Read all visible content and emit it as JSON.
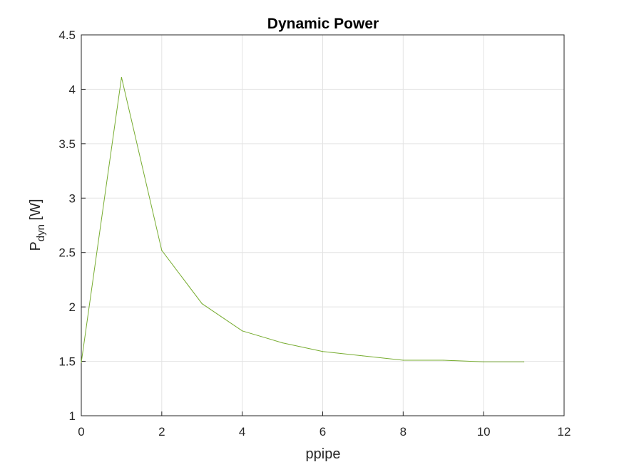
{
  "chart_data": {
    "type": "line",
    "title": "Dynamic Power",
    "xlabel": "ppipe",
    "ylabel_main": "P",
    "ylabel_sub": "dyn",
    "ylabel_unit": " [W]",
    "xlim": [
      0,
      12
    ],
    "ylim": [
      1,
      4.5
    ],
    "xticks": [
      0,
      2,
      4,
      6,
      8,
      10,
      12
    ],
    "yticks": [
      1,
      1.5,
      2,
      2.5,
      3,
      3.5,
      4,
      4.5
    ],
    "ytick_labels": [
      "1",
      "1.5",
      "2",
      "2.5",
      "3",
      "3.5",
      "4",
      "4.5"
    ],
    "grid": true,
    "series": [
      {
        "color": "#77ac30",
        "x": [
          0,
          1,
          2,
          3,
          4,
          5,
          6,
          7,
          8,
          9,
          10,
          11
        ],
        "y": [
          1.49,
          4.11,
          2.52,
          2.03,
          1.78,
          1.67,
          1.59,
          1.55,
          1.51,
          1.51,
          1.495,
          1.495
        ]
      }
    ]
  }
}
